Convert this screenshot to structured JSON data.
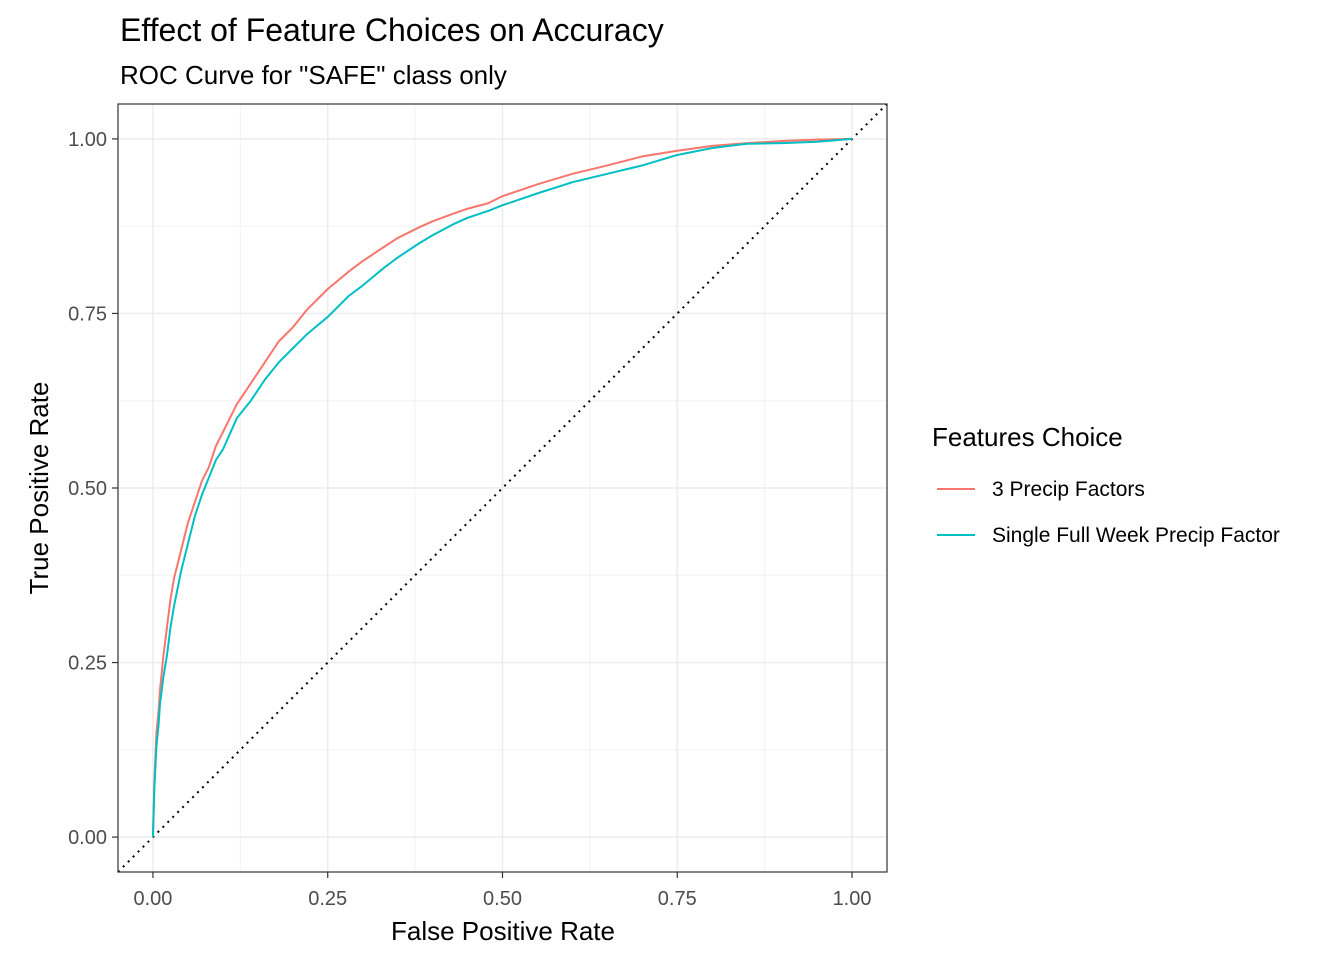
{
  "chart_data": {
    "type": "line",
    "title": "Effect of Feature Choices on Accuracy",
    "subtitle": "ROC Curve for \"SAFE\" class only",
    "xlabel": "False Positive Rate",
    "ylabel": "True Positive Rate",
    "xlim": [
      -0.05,
      1.05
    ],
    "ylim": [
      -0.05,
      1.05
    ],
    "xticks": [
      "0.00",
      "0.25",
      "0.50",
      "0.75",
      "1.00"
    ],
    "yticks": [
      "0.00",
      "0.25",
      "0.50",
      "0.75",
      "1.00"
    ],
    "xtick_values": [
      0,
      0.25,
      0.5,
      0.75,
      1
    ],
    "ytick_values": [
      0,
      0.25,
      0.5,
      0.75,
      1
    ],
    "grid": true,
    "legend": {
      "title": "Features Choice",
      "position": "right"
    },
    "series": [
      {
        "name": "3 Precip Factors",
        "color": "#F8766D",
        "x": [
          0,
          0.002,
          0.005,
          0.008,
          0.01,
          0.015,
          0.02,
          0.025,
          0.03,
          0.04,
          0.05,
          0.06,
          0.07,
          0.08,
          0.09,
          0.1,
          0.12,
          0.14,
          0.16,
          0.18,
          0.2,
          0.22,
          0.25,
          0.28,
          0.3,
          0.33,
          0.35,
          0.38,
          0.4,
          0.43,
          0.45,
          0.48,
          0.5,
          0.55,
          0.6,
          0.65,
          0.7,
          0.75,
          0.8,
          0.85,
          0.9,
          0.95,
          1.0
        ],
        "y": [
          0,
          0.08,
          0.15,
          0.18,
          0.21,
          0.26,
          0.3,
          0.34,
          0.37,
          0.41,
          0.45,
          0.48,
          0.51,
          0.53,
          0.56,
          0.58,
          0.62,
          0.65,
          0.68,
          0.71,
          0.73,
          0.755,
          0.785,
          0.81,
          0.825,
          0.845,
          0.858,
          0.873,
          0.882,
          0.893,
          0.9,
          0.908,
          0.918,
          0.935,
          0.95,
          0.962,
          0.975,
          0.983,
          0.99,
          0.994,
          0.997,
          0.999,
          1.0
        ]
      },
      {
        "name": "Single Full Week Precip Factor",
        "color": "#00BFC4",
        "x": [
          0,
          0.002,
          0.005,
          0.008,
          0.01,
          0.015,
          0.02,
          0.025,
          0.03,
          0.04,
          0.05,
          0.06,
          0.07,
          0.08,
          0.09,
          0.1,
          0.12,
          0.14,
          0.16,
          0.18,
          0.2,
          0.22,
          0.25,
          0.28,
          0.3,
          0.33,
          0.35,
          0.38,
          0.4,
          0.43,
          0.45,
          0.48,
          0.5,
          0.55,
          0.6,
          0.65,
          0.7,
          0.75,
          0.8,
          0.85,
          0.9,
          0.95,
          1.0
        ],
        "y": [
          0,
          0.07,
          0.13,
          0.16,
          0.19,
          0.23,
          0.26,
          0.3,
          0.33,
          0.38,
          0.42,
          0.46,
          0.49,
          0.515,
          0.54,
          0.555,
          0.6,
          0.625,
          0.655,
          0.68,
          0.7,
          0.72,
          0.745,
          0.775,
          0.79,
          0.815,
          0.83,
          0.85,
          0.862,
          0.878,
          0.887,
          0.897,
          0.905,
          0.922,
          0.938,
          0.95,
          0.962,
          0.977,
          0.987,
          0.993,
          0.994,
          0.996,
          1.0
        ]
      }
    ],
    "reference_line": {
      "type": "diagonal",
      "style": "dotted",
      "color": "#000000"
    }
  }
}
